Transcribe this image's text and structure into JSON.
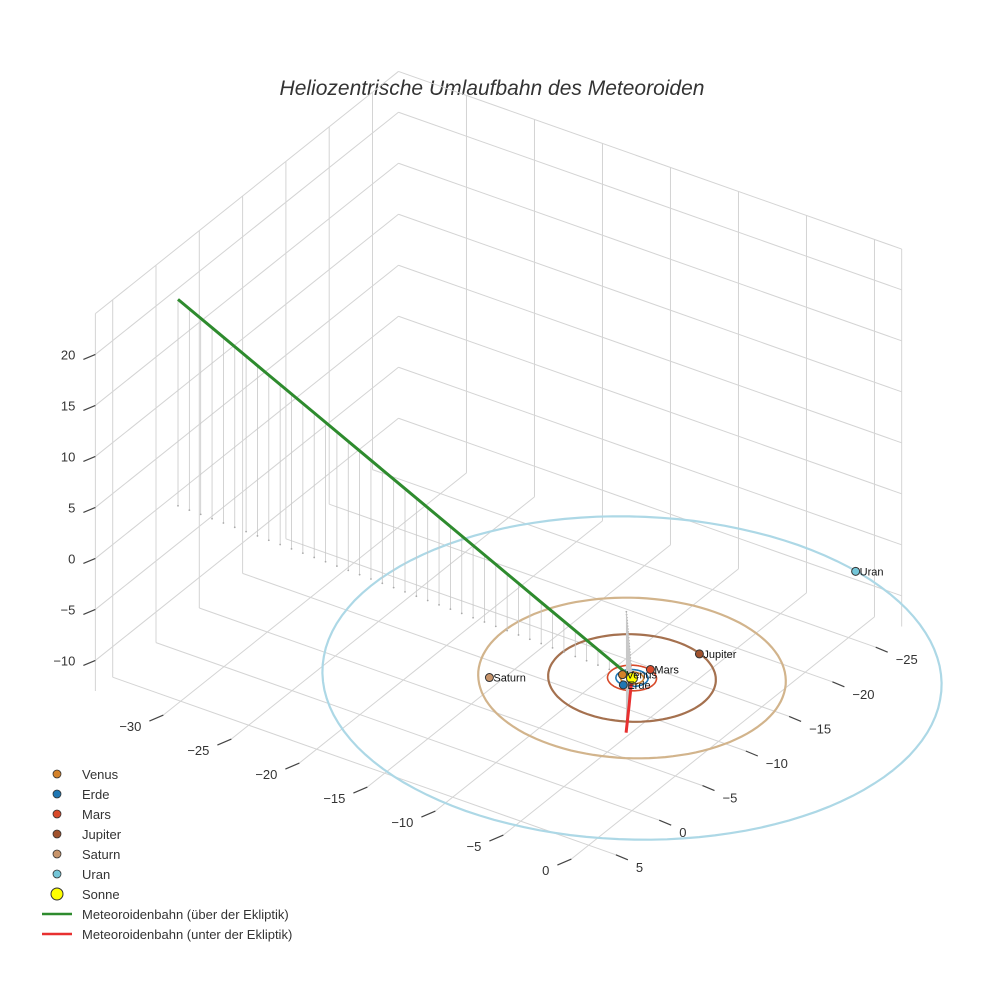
{
  "chart_data": {
    "type": "scatter3d",
    "title": "Heliozentrische Umlaufbahn des Meteoroiden",
    "axes": {
      "x": {
        "ticks": [
          -30,
          -25,
          -20,
          -15,
          -10,
          -5,
          0
        ],
        "range": [
          -35,
          2
        ]
      },
      "y": {
        "ticks": [
          -25,
          -20,
          -15,
          -10,
          -5,
          0,
          5
        ],
        "range": [
          -28,
          7
        ]
      },
      "z": {
        "ticks": [
          -10,
          -5,
          0,
          5,
          10,
          15,
          20
        ],
        "range": [
          -13,
          24
        ]
      }
    },
    "planets": [
      {
        "name": "Venus",
        "label": "Venus",
        "x": -0.7,
        "y": 0.0,
        "color": "#d4822a",
        "orbit_radius": 0.72
      },
      {
        "name": "Erde",
        "label": "Erde",
        "x": 0.0,
        "y": 1.0,
        "color": "#1f77b4",
        "orbit_radius": 1.0
      },
      {
        "name": "Mars",
        "label": "Mars",
        "x": 0.4,
        "y": -1.5,
        "color": "#d84a2a",
        "orbit_radius": 1.52
      },
      {
        "name": "Jupiter",
        "label": "Jupiter",
        "x": 1.9,
        "y": -4.8,
        "color": "#a0522d",
        "orbit_radius": 5.2
      },
      {
        "name": "Saturn",
        "label": "Saturn",
        "x": -7.3,
        "y": 5.0,
        "color": "#c8946a",
        "orbit_radius": 9.54
      },
      {
        "name": "Uran",
        "label": "Uran",
        "x": 4.6,
        "y": -18.6,
        "color": "#74c6d8",
        "orbit_radius": 19.2
      }
    ],
    "orbit_colors": {
      "Venus": "#d4822a",
      "Erde": "#1f77b4",
      "Mars": "#d84a2a",
      "Jupiter": "#a5714f",
      "Saturn": "#d2b48c",
      "Uran": "#add8e6"
    },
    "sun": {
      "name": "Sonne",
      "x": 0,
      "y": 0,
      "z": 0,
      "color": "#ffff00"
    },
    "trajectory_above": {
      "name": "Meteoroidenbahn (über der Ekliptik)",
      "color": "#2e8b2e",
      "points": [
        [
          -33.0,
          0.6,
          22.0
        ],
        [
          -29.7,
          0.54,
          19.8
        ],
        [
          -26.4,
          0.48,
          17.6
        ],
        [
          -23.1,
          0.42,
          15.4
        ],
        [
          -19.8,
          0.36,
          13.2
        ],
        [
          -16.5,
          0.3,
          11.0
        ],
        [
          -13.2,
          0.24,
          8.8
        ],
        [
          -9.9,
          0.18,
          6.6
        ],
        [
          -6.6,
          0.12,
          4.4
        ],
        [
          -3.3,
          0.06,
          2.2
        ],
        [
          0.0,
          0.0,
          0.0
        ]
      ]
    },
    "trajectory_below": {
      "name": "Meteoroidenbahn (unter der Ekliptik)",
      "color": "#e83030",
      "points": [
        [
          0.0,
          0.0,
          0.0
        ],
        [
          -0.9,
          -1.3,
          -2.2
        ],
        [
          -1.8,
          -2.6,
          -4.4
        ],
        [
          -2.7,
          -3.9,
          -6.6
        ],
        [
          -3.6,
          -5.2,
          -8.8
        ],
        [
          -4.5,
          -6.5,
          -11.0
        ],
        [
          -5.4,
          -7.8,
          -13.2
        ]
      ]
    },
    "legend": {
      "position": "bottom-left",
      "entries": [
        {
          "label": "Venus",
          "kind": "marker",
          "color": "#d4822a"
        },
        {
          "label": "Erde",
          "kind": "marker",
          "color": "#1f77b4"
        },
        {
          "label": "Mars",
          "kind": "marker",
          "color": "#d84a2a"
        },
        {
          "label": "Jupiter",
          "kind": "marker",
          "color": "#a0522d"
        },
        {
          "label": "Saturn",
          "kind": "marker",
          "color": "#c8946a"
        },
        {
          "label": "Uran",
          "kind": "marker",
          "color": "#74c6d8"
        },
        {
          "label": "Sonne",
          "kind": "sun",
          "color": "#ffff00"
        },
        {
          "label": "Meteoroidenbahn (über der Ekliptik)",
          "kind": "line",
          "color": "#2e8b2e"
        },
        {
          "label": "Meteoroidenbahn (unter der Ekliptik)",
          "kind": "line",
          "color": "#e83030"
        }
      ]
    },
    "grid": true
  }
}
